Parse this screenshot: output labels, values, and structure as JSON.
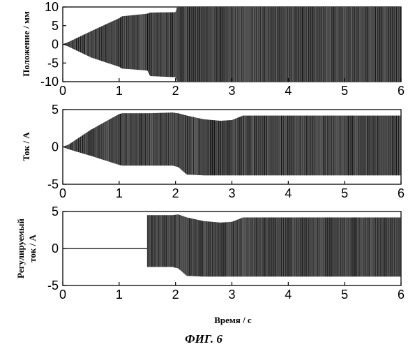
{
  "chart_data": [
    {
      "type": "area",
      "ylabel": "Положение / мм",
      "xlim": [
        0,
        6
      ],
      "ylim": [
        -10,
        10
      ],
      "xticks": [
        "0",
        "1",
        "2",
        "3",
        "4",
        "5",
        "6"
      ],
      "yticks": [
        "10",
        "5",
        "0",
        "-5",
        "-10"
      ],
      "envelope": {
        "t": [
          0,
          0.1,
          0.5,
          1.0,
          1.05,
          1.5,
          1.55,
          2.0,
          2.03,
          6.0
        ],
        "upper": [
          0,
          0.6,
          3.5,
          7.0,
          7.5,
          8.2,
          8.5,
          8.6,
          10.0,
          10.0
        ],
        "lower": [
          0,
          -0.6,
          -3.5,
          -6.0,
          -6.5,
          -7.0,
          -8.5,
          -8.8,
          -10.0,
          -10.0
        ]
      }
    },
    {
      "type": "area",
      "ylabel": "Ток / А",
      "xlim": [
        0,
        6
      ],
      "ylim": [
        -5,
        5
      ],
      "xticks": [
        "0",
        "1",
        "2",
        "3",
        "4",
        "5",
        "6"
      ],
      "yticks": [
        "5",
        "0",
        "-5"
      ],
      "envelope": {
        "t": [
          0,
          0.1,
          0.5,
          1.0,
          1.05,
          1.5,
          1.95,
          2.05,
          2.2,
          2.5,
          2.8,
          3.0,
          3.2,
          4.0,
          6.0
        ],
        "upper": [
          0,
          0.3,
          2.3,
          4.4,
          4.5,
          4.5,
          4.6,
          4.5,
          4.2,
          3.7,
          3.5,
          3.6,
          4.2,
          4.2,
          4.2
        ],
        "lower": [
          0,
          -0.3,
          -1.2,
          -2.4,
          -2.5,
          -2.5,
          -2.5,
          -2.7,
          -3.7,
          -3.8,
          -3.8,
          -3.8,
          -3.8,
          -3.8,
          -3.8
        ]
      }
    },
    {
      "type": "area",
      "ylabel": "Регулируемый ток / А",
      "xlim": [
        0,
        6
      ],
      "ylim": [
        -5,
        5
      ],
      "xticks": [
        "0",
        "1",
        "2",
        "3",
        "4",
        "5",
        "6"
      ],
      "yticks": [
        "5",
        "0",
        "-5"
      ],
      "baseline_until": 1.5,
      "envelope": {
        "t": [
          1.5,
          1.95,
          2.05,
          2.2,
          2.5,
          2.8,
          3.0,
          3.2,
          4.0,
          6.0
        ],
        "upper": [
          4.5,
          4.5,
          4.6,
          4.2,
          3.7,
          3.5,
          3.6,
          4.2,
          4.2,
          4.2
        ],
        "lower": [
          -2.5,
          -2.5,
          -2.7,
          -3.7,
          -3.8,
          -3.8,
          -3.8,
          -3.8,
          -3.8,
          -3.8
        ]
      }
    }
  ],
  "xlabel": "Время / с",
  "caption": "ФИГ. 6"
}
